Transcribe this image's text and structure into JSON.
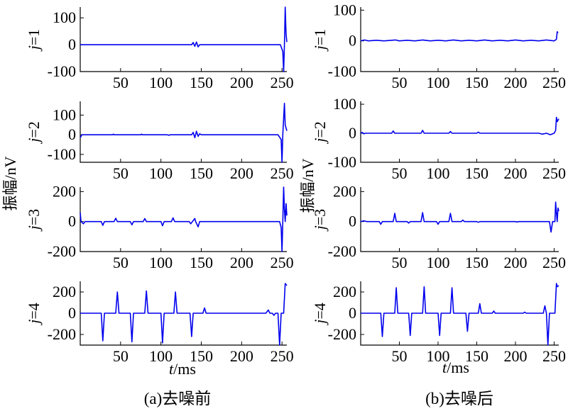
{
  "figure": {
    "ylabel_common": "振幅/nV",
    "xlabel": "t/ms",
    "caption_a": "(a)去噪前",
    "caption_b": "(b)去噪后"
  },
  "chart_data": [
    {
      "type": "line",
      "panel": "a",
      "row_label": "j=1",
      "xlim": [
        0,
        256
      ],
      "ylim": [
        -100,
        140
      ],
      "xticks": [
        50,
        100,
        150,
        200,
        250
      ],
      "yticks": [
        100,
        0,
        -100
      ],
      "grid": false,
      "points": [
        [
          0,
          0
        ],
        [
          138,
          0
        ],
        [
          140,
          8
        ],
        [
          142,
          -6
        ],
        [
          144,
          10
        ],
        [
          146,
          -8
        ],
        [
          148,
          0
        ],
        [
          248,
          0
        ],
        [
          251,
          -25
        ],
        [
          252,
          -100
        ],
        [
          253,
          0
        ],
        [
          254,
          140
        ],
        [
          255,
          40
        ],
        [
          256,
          10
        ]
      ]
    },
    {
      "type": "line",
      "panel": "a",
      "row_label": "j=2",
      "xlim": [
        0,
        256
      ],
      "ylim": [
        -140,
        170
      ],
      "xticks": [
        50,
        100,
        150,
        200,
        250
      ],
      "yticks": [
        100,
        0,
        -100
      ],
      "grid": false,
      "points": [
        [
          0,
          -15
        ],
        [
          1,
          -8
        ],
        [
          2,
          0
        ],
        [
          40,
          0
        ],
        [
          41,
          3
        ],
        [
          42,
          0
        ],
        [
          75,
          0
        ],
        [
          76,
          3
        ],
        [
          77,
          0
        ],
        [
          108,
          0
        ],
        [
          110,
          -3
        ],
        [
          111,
          0
        ],
        [
          138,
          0
        ],
        [
          140,
          12
        ],
        [
          142,
          -15
        ],
        [
          144,
          18
        ],
        [
          146,
          -8
        ],
        [
          148,
          5
        ],
        [
          150,
          0
        ],
        [
          245,
          0
        ],
        [
          247,
          -12
        ],
        [
          249,
          -25
        ],
        [
          250,
          -140
        ],
        [
          251,
          0
        ],
        [
          253,
          160
        ],
        [
          254,
          50
        ],
        [
          256,
          20
        ]
      ]
    },
    {
      "type": "line",
      "panel": "a",
      "row_label": "j=3",
      "xlim": [
        0,
        256
      ],
      "ylim": [
        -200,
        230
      ],
      "xticks": [
        50,
        100,
        150,
        200,
        250
      ],
      "yticks": [
        200,
        0,
        -200
      ],
      "grid": false,
      "points": [
        [
          0,
          60
        ],
        [
          1,
          0
        ],
        [
          4,
          -15
        ],
        [
          6,
          0
        ],
        [
          26,
          0
        ],
        [
          28,
          -25
        ],
        [
          30,
          0
        ],
        [
          42,
          0
        ],
        [
          44,
          22
        ],
        [
          46,
          0
        ],
        [
          62,
          0
        ],
        [
          64,
          -22
        ],
        [
          66,
          0
        ],
        [
          78,
          0
        ],
        [
          80,
          20
        ],
        [
          82,
          0
        ],
        [
          100,
          0
        ],
        [
          102,
          -28
        ],
        [
          104,
          0
        ],
        [
          113,
          0
        ],
        [
          115,
          25
        ],
        [
          117,
          0
        ],
        [
          135,
          0
        ],
        [
          137,
          -15
        ],
        [
          139,
          0
        ],
        [
          142,
          20
        ],
        [
          143,
          0
        ],
        [
          146,
          -35
        ],
        [
          148,
          0
        ],
        [
          247,
          0
        ],
        [
          249,
          -40
        ],
        [
          250,
          -200
        ],
        [
          251,
          0
        ],
        [
          252,
          230
        ],
        [
          253,
          80
        ],
        [
          254,
          0
        ],
        [
          255,
          120
        ],
        [
          256,
          40
        ]
      ]
    },
    {
      "type": "line",
      "panel": "a",
      "row_label": "j=4",
      "xlim": [
        0,
        256
      ],
      "ylim": [
        -300,
        300
      ],
      "xticks": [
        50,
        100,
        150,
        200,
        250
      ],
      "yticks": [
        200,
        0,
        -200
      ],
      "grid": false,
      "points": [
        [
          0,
          0
        ],
        [
          26,
          0
        ],
        [
          28,
          -260
        ],
        [
          30,
          0
        ],
        [
          44,
          0
        ],
        [
          46,
          200
        ],
        [
          48,
          0
        ],
        [
          62,
          0
        ],
        [
          64,
          -270
        ],
        [
          66,
          0
        ],
        [
          80,
          0
        ],
        [
          82,
          210
        ],
        [
          84,
          0
        ],
        [
          100,
          0
        ],
        [
          102,
          -280
        ],
        [
          104,
          0
        ],
        [
          116,
          0
        ],
        [
          118,
          200
        ],
        [
          120,
          0
        ],
        [
          136,
          0
        ],
        [
          138,
          -220
        ],
        [
          140,
          0
        ],
        [
          152,
          0
        ],
        [
          154,
          50
        ],
        [
          156,
          0
        ],
        [
          230,
          0
        ],
        [
          233,
          30
        ],
        [
          235,
          0
        ],
        [
          238,
          0
        ],
        [
          240,
          -20
        ],
        [
          242,
          0
        ],
        [
          245,
          0
        ],
        [
          247,
          -300
        ],
        [
          249,
          0
        ],
        [
          252,
          0
        ],
        [
          254,
          280
        ],
        [
          256,
          260
        ]
      ]
    },
    {
      "type": "line",
      "panel": "b",
      "row_label": "j=1",
      "xlim": [
        0,
        256
      ],
      "ylim": [
        -100,
        110
      ],
      "xticks": [
        50,
        100,
        150,
        200,
        250
      ],
      "yticks": [
        100,
        0,
        -100
      ],
      "grid": false,
      "points": [
        [
          0,
          0
        ],
        [
          5,
          3
        ],
        [
          10,
          0
        ],
        [
          20,
          2
        ],
        [
          30,
          0
        ],
        [
          45,
          3
        ],
        [
          50,
          0
        ],
        [
          60,
          2
        ],
        [
          70,
          0
        ],
        [
          80,
          3
        ],
        [
          90,
          0
        ],
        [
          100,
          2
        ],
        [
          110,
          0
        ],
        [
          120,
          3
        ],
        [
          130,
          0
        ],
        [
          140,
          2
        ],
        [
          150,
          0
        ],
        [
          160,
          3
        ],
        [
          170,
          0
        ],
        [
          180,
          2
        ],
        [
          190,
          0
        ],
        [
          200,
          3
        ],
        [
          210,
          0
        ],
        [
          220,
          2
        ],
        [
          230,
          0
        ],
        [
          240,
          3
        ],
        [
          250,
          0
        ],
        [
          253,
          5
        ],
        [
          254,
          30
        ],
        [
          255,
          25
        ]
      ]
    },
    {
      "type": "line",
      "panel": "b",
      "row_label": "j=2",
      "xlim": [
        0,
        256
      ],
      "ylim": [
        -100,
        110
      ],
      "xticks": [
        50,
        100,
        150,
        200,
        250
      ],
      "yticks": [
        100,
        0,
        -100
      ],
      "grid": false,
      "points": [
        [
          0,
          0
        ],
        [
          2,
          3
        ],
        [
          4,
          -2
        ],
        [
          6,
          0
        ],
        [
          40,
          0
        ],
        [
          42,
          8
        ],
        [
          44,
          0
        ],
        [
          78,
          0
        ],
        [
          80,
          10
        ],
        [
          82,
          0
        ],
        [
          114,
          0
        ],
        [
          116,
          6
        ],
        [
          118,
          0
        ],
        [
          150,
          0
        ],
        [
          152,
          4
        ],
        [
          154,
          0
        ],
        [
          230,
          0
        ],
        [
          235,
          -3
        ],
        [
          240,
          0
        ],
        [
          245,
          -5
        ],
        [
          250,
          0
        ],
        [
          252,
          10
        ],
        [
          253,
          55
        ],
        [
          254,
          40
        ],
        [
          256,
          50
        ]
      ]
    },
    {
      "type": "line",
      "panel": "b",
      "row_label": "j=3",
      "xlim": [
        0,
        256
      ],
      "ylim": [
        -200,
        230
      ],
      "xticks": [
        50,
        100,
        150,
        200,
        250
      ],
      "yticks": [
        200,
        0,
        -200
      ],
      "grid": false,
      "points": [
        [
          0,
          0
        ],
        [
          4,
          5
        ],
        [
          8,
          0
        ],
        [
          24,
          0
        ],
        [
          26,
          -18
        ],
        [
          28,
          0
        ],
        [
          42,
          0
        ],
        [
          44,
          55
        ],
        [
          46,
          0
        ],
        [
          60,
          0
        ],
        [
          62,
          -10
        ],
        [
          64,
          0
        ],
        [
          78,
          0
        ],
        [
          80,
          60
        ],
        [
          82,
          0
        ],
        [
          98,
          0
        ],
        [
          100,
          -18
        ],
        [
          102,
          0
        ],
        [
          114,
          0
        ],
        [
          116,
          55
        ],
        [
          118,
          0
        ],
        [
          130,
          0
        ],
        [
          132,
          10
        ],
        [
          134,
          0
        ],
        [
          150,
          0
        ],
        [
          152,
          -5
        ],
        [
          154,
          0
        ],
        [
          200,
          0
        ],
        [
          202,
          -3
        ],
        [
          204,
          0
        ],
        [
          244,
          0
        ],
        [
          246,
          -70
        ],
        [
          248,
          0
        ],
        [
          251,
          0
        ],
        [
          252,
          130
        ],
        [
          253,
          60
        ],
        [
          254,
          0
        ],
        [
          255,
          90
        ],
        [
          256,
          70
        ]
      ]
    },
    {
      "type": "line",
      "panel": "b",
      "row_label": "j=4",
      "xlim": [
        0,
        256
      ],
      "ylim": [
        -300,
        300
      ],
      "xticks": [
        50,
        100,
        150,
        200,
        250
      ],
      "yticks": [
        200,
        0,
        -200
      ],
      "grid": false,
      "points": [
        [
          0,
          0
        ],
        [
          26,
          0
        ],
        [
          28,
          -220
        ],
        [
          30,
          0
        ],
        [
          44,
          0
        ],
        [
          46,
          240
        ],
        [
          48,
          0
        ],
        [
          62,
          0
        ],
        [
          64,
          -210
        ],
        [
          66,
          0
        ],
        [
          80,
          0
        ],
        [
          82,
          250
        ],
        [
          84,
          0
        ],
        [
          100,
          0
        ],
        [
          102,
          -210
        ],
        [
          104,
          0
        ],
        [
          116,
          0
        ],
        [
          118,
          240
        ],
        [
          120,
          0
        ],
        [
          136,
          0
        ],
        [
          138,
          -170
        ],
        [
          140,
          0
        ],
        [
          152,
          0
        ],
        [
          154,
          90
        ],
        [
          156,
          0
        ],
        [
          170,
          0
        ],
        [
          172,
          20
        ],
        [
          174,
          0
        ],
        [
          210,
          0
        ],
        [
          212,
          10
        ],
        [
          214,
          0
        ],
        [
          236,
          0
        ],
        [
          238,
          70
        ],
        [
          240,
          0
        ],
        [
          242,
          -300
        ],
        [
          244,
          0
        ],
        [
          251,
          0
        ],
        [
          253,
          280
        ],
        [
          254,
          250
        ],
        [
          256,
          260
        ]
      ]
    }
  ]
}
